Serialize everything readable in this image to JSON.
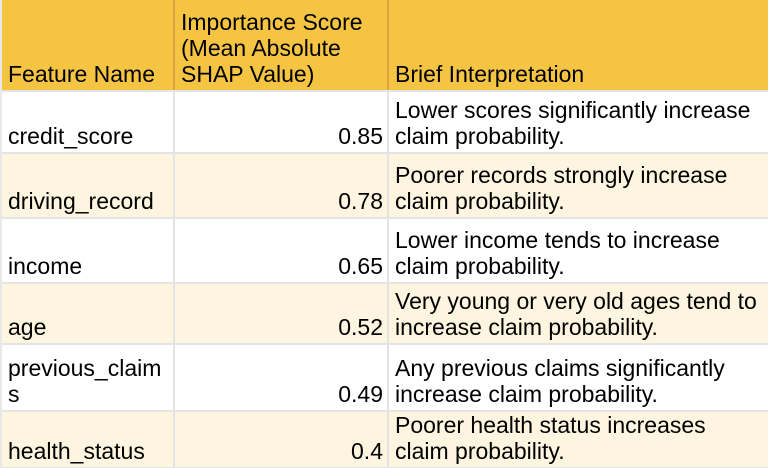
{
  "table": {
    "columns": [
      {
        "label": "Feature Name"
      },
      {
        "label": "Importance Score (Mean Absolute SHAP Value)"
      },
      {
        "label": "Brief Interpretation"
      }
    ],
    "rows": [
      {
        "feature": "credit_score",
        "score": "0.85",
        "interpretation": "Lower scores significantly increase claim probability."
      },
      {
        "feature": "driving_record",
        "score": "0.78",
        "interpretation": "Poorer records strongly increase claim probability."
      },
      {
        "feature": "income",
        "score": "0.65",
        "interpretation": "Lower income tends to increase claim probability."
      },
      {
        "feature": "age",
        "score": "0.52",
        "interpretation": "Very young or very old ages tend to increase claim probability."
      },
      {
        "feature": "previous_claims",
        "score": "0.49",
        "interpretation": "Any previous claims significantly increase claim probability."
      },
      {
        "feature": "health_status",
        "score": "0.4",
        "interpretation": "Poorer health status increases claim probability."
      }
    ],
    "colors": {
      "header_bg": "#f5c443",
      "header_divider": "#d9a43c",
      "row_bg": "#ffffff",
      "alt_row_bg": "#fdf5df",
      "gridline": "#e4e4e4",
      "text": "#000000"
    }
  }
}
